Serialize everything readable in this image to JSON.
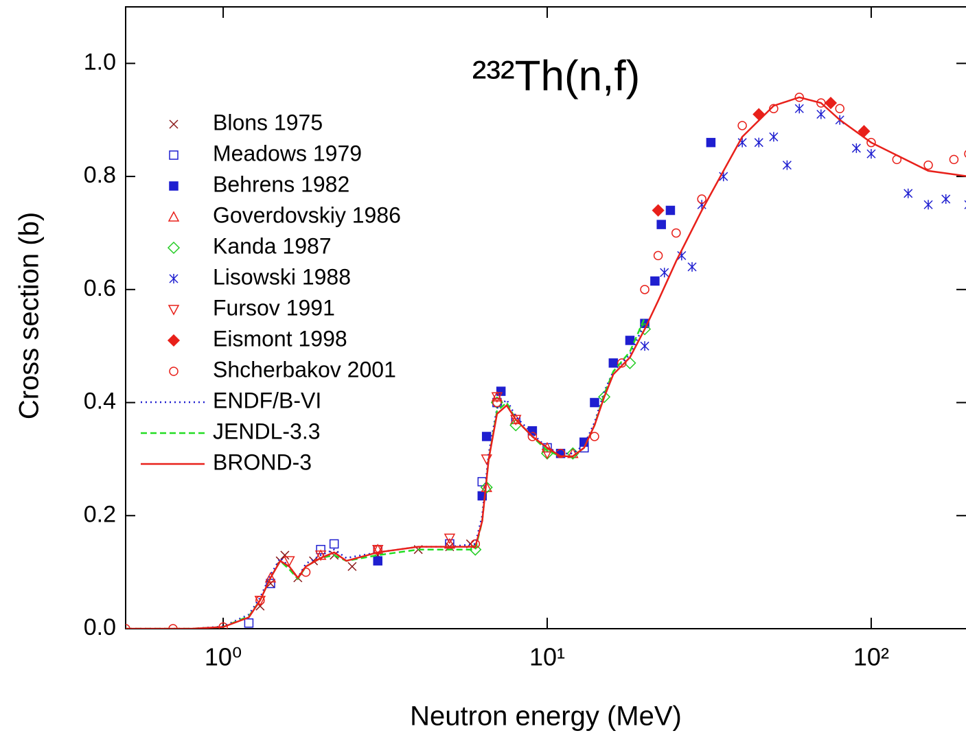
{
  "chart_data": {
    "type": "scatter-line",
    "title": "²³²Th(n,f)",
    "x_label": "Neutron energy (MeV)",
    "y_label": "Cross section (b)",
    "xscale": "log",
    "xlim": [
      0.5,
      200
    ],
    "ylim": [
      0,
      1.1
    ],
    "xticks": [
      {
        "value": 1,
        "label": "10⁰"
      },
      {
        "value": 10,
        "label": "10¹"
      },
      {
        "value": 100,
        "label": "10²"
      }
    ],
    "yticks": [
      {
        "value": 0,
        "label": "0.0"
      },
      {
        "value": 0.2,
        "label": "0.2"
      },
      {
        "value": 0.4,
        "label": "0.4"
      },
      {
        "value": 0.6,
        "label": "0.6"
      },
      {
        "value": 0.8,
        "label": "0.8"
      },
      {
        "value": 1.0,
        "label": "1.0"
      }
    ],
    "legend": "upper left",
    "series": [
      {
        "name": "Blons 1975",
        "color": "#8b1a1a",
        "marker": "x",
        "x": [
          1.3,
          1.4,
          1.5,
          1.55,
          1.7,
          1.9,
          2.2,
          2.5,
          3,
          4,
          5,
          5.8
        ],
        "values": [
          0.04,
          0.08,
          0.12,
          0.13,
          0.09,
          0.12,
          0.13,
          0.11,
          0.13,
          0.14,
          0.145,
          0.15
        ]
      },
      {
        "name": "Meadows 1979",
        "color": "#1f1fd0",
        "marker": "square",
        "x": [
          1.2,
          1.4,
          2,
          2.2,
          3,
          5,
          6.3,
          7,
          8,
          10,
          13
        ],
        "values": [
          0.01,
          0.08,
          0.14,
          0.15,
          0.14,
          0.15,
          0.26,
          0.4,
          0.37,
          0.32,
          0.32
        ]
      },
      {
        "name": "Behrens 1982",
        "color": "#1f1fd0",
        "marker": "filled-square",
        "x": [
          3,
          6.3,
          6.5,
          7.2,
          9,
          11,
          13,
          14,
          16,
          18,
          20,
          21.5,
          22.5,
          24,
          32
        ],
        "values": [
          0.12,
          0.235,
          0.34,
          0.42,
          0.35,
          0.31,
          0.33,
          0.4,
          0.47,
          0.51,
          0.54,
          0.615,
          0.715,
          0.74,
          0.86
        ]
      },
      {
        "name": "Goverdovskiy 1986",
        "color": "#e8201a",
        "marker": "triangle",
        "x": [
          1.4,
          2,
          3,
          5,
          6.5,
          7,
          8,
          10,
          12
        ],
        "values": [
          0.09,
          0.13,
          0.14,
          0.15,
          0.25,
          0.41,
          0.37,
          0.32,
          0.31
        ]
      },
      {
        "name": "Kanda 1987",
        "color": "#22cc22",
        "marker": "diamond",
        "x": [
          6,
          6.5,
          7,
          8,
          10,
          12,
          15,
          18,
          20
        ],
        "values": [
          0.14,
          0.25,
          0.4,
          0.36,
          0.31,
          0.31,
          0.41,
          0.47,
          0.53
        ]
      },
      {
        "name": "Lisowski 1988",
        "color": "#1f1fd0",
        "marker": "asterisk",
        "x": [
          20,
          23,
          26,
          28,
          30,
          35,
          40,
          45,
          50,
          55,
          60,
          70,
          80,
          90,
          100,
          130,
          150,
          170,
          200
        ],
        "values": [
          0.5,
          0.63,
          0.66,
          0.64,
          0.75,
          0.8,
          0.86,
          0.86,
          0.87,
          0.82,
          0.92,
          0.91,
          0.9,
          0.85,
          0.84,
          0.77,
          0.75,
          0.76,
          0.75
        ]
      },
      {
        "name": "Fursov 1991",
        "color": "#e8201a",
        "marker": "down-triangle",
        "x": [
          1.3,
          1.6,
          2,
          3,
          5,
          6.5,
          7,
          8,
          10
        ],
        "values": [
          0.05,
          0.12,
          0.13,
          0.14,
          0.16,
          0.3,
          0.41,
          0.37,
          0.31
        ]
      },
      {
        "name": "Eismont 1998",
        "color": "#e8201a",
        "marker": "filled-diamond",
        "x": [
          22,
          45,
          75,
          95
        ],
        "values": [
          0.74,
          0.91,
          0.93,
          0.88
        ]
      },
      {
        "name": "Shcherbakov 2001",
        "color": "#e8201a",
        "marker": "circle",
        "x": [
          0.5,
          0.7,
          1,
          1.3,
          1.8,
          3,
          6,
          7,
          9,
          11,
          14,
          17,
          20,
          22,
          25,
          30,
          40,
          50,
          60,
          70,
          80,
          100,
          120,
          150,
          180,
          200
        ],
        "values": [
          0,
          0,
          0.003,
          0.05,
          0.1,
          0.14,
          0.15,
          0.4,
          0.34,
          0.31,
          0.34,
          0.47,
          0.6,
          0.66,
          0.7,
          0.76,
          0.89,
          0.92,
          0.94,
          0.93,
          0.92,
          0.86,
          0.83,
          0.82,
          0.83,
          0.84
        ]
      },
      {
        "name": "ENDF/B-VI",
        "color": "#1f1fd0",
        "line": "dotted",
        "x": [
          0.5,
          0.8,
          1,
          1.2,
          1.3,
          1.4,
          1.5,
          1.6,
          1.7,
          1.8,
          2,
          2.2,
          2.4,
          3,
          4,
          5,
          6,
          6.3,
          6.6,
          7,
          7.5,
          8,
          9,
          10,
          11,
          12,
          13,
          14,
          15,
          16,
          18,
          20
        ],
        "values": [
          0,
          0,
          0.004,
          0.025,
          0.055,
          0.095,
          0.125,
          0.11,
          0.09,
          0.115,
          0.13,
          0.14,
          0.125,
          0.135,
          0.145,
          0.145,
          0.15,
          0.2,
          0.31,
          0.39,
          0.405,
          0.375,
          0.345,
          0.32,
          0.31,
          0.31,
          0.325,
          0.365,
          0.42,
          0.455,
          0.485,
          0.54
        ]
      },
      {
        "name": "JENDL-3.3",
        "color": "#22dd22",
        "line": "dashed",
        "x": [
          0.5,
          0.8,
          1,
          1.2,
          1.3,
          1.4,
          1.5,
          1.6,
          1.7,
          1.8,
          2,
          2.2,
          2.4,
          3,
          4,
          5,
          6,
          6.3,
          6.6,
          7,
          7.5,
          8,
          9,
          10,
          11,
          12,
          13,
          14,
          15,
          16,
          18,
          20
        ],
        "values": [
          0,
          0,
          0.003,
          0.022,
          0.05,
          0.09,
          0.12,
          0.105,
          0.088,
          0.11,
          0.125,
          0.13,
          0.12,
          0.13,
          0.14,
          0.14,
          0.14,
          0.19,
          0.3,
          0.385,
          0.4,
          0.37,
          0.34,
          0.315,
          0.305,
          0.305,
          0.32,
          0.36,
          0.415,
          0.455,
          0.49,
          0.55
        ]
      },
      {
        "name": "BROND-3",
        "color": "#e8201a",
        "line": "solid",
        "x": [
          0.5,
          0.8,
          1,
          1.2,
          1.3,
          1.4,
          1.5,
          1.6,
          1.7,
          1.8,
          2,
          2.2,
          2.4,
          3,
          4,
          5,
          6,
          6.3,
          6.6,
          7,
          7.5,
          8,
          9,
          10,
          11,
          12,
          13,
          14,
          15,
          16,
          18,
          20,
          22,
          25,
          30,
          35,
          40,
          50,
          60,
          70,
          80,
          100,
          150,
          200
        ],
        "values": [
          0,
          0,
          0.003,
          0.02,
          0.05,
          0.09,
          0.12,
          0.11,
          0.09,
          0.11,
          0.125,
          0.135,
          0.12,
          0.135,
          0.145,
          0.145,
          0.145,
          0.19,
          0.3,
          0.38,
          0.395,
          0.37,
          0.34,
          0.32,
          0.305,
          0.305,
          0.32,
          0.36,
          0.41,
          0.45,
          0.48,
          0.53,
          0.58,
          0.65,
          0.74,
          0.81,
          0.87,
          0.925,
          0.94,
          0.93,
          0.9,
          0.86,
          0.81,
          0.8
        ]
      }
    ]
  }
}
